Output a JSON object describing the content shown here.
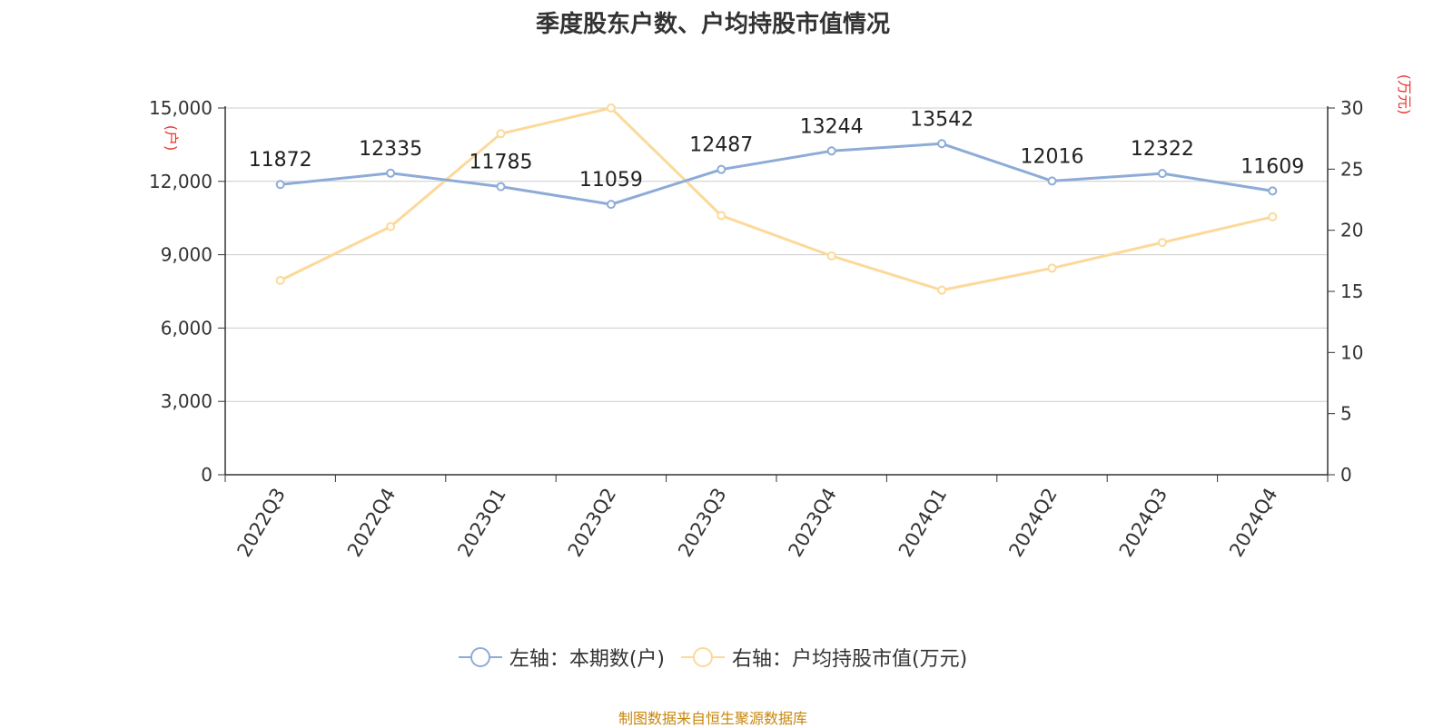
{
  "title": "季度股东户数、户均持股市值情况",
  "source": "制图数据来自恒生聚源数据库",
  "colors": {
    "left_series": "#8eabd8",
    "right_series": "#fcd99a",
    "axis_unit": "#e8332a",
    "source": "#c8860a"
  },
  "chart_data": {
    "type": "line",
    "title": "季度股东户数、户均持股市值情况",
    "categories": [
      "2022Q3",
      "2022Q4",
      "2023Q1",
      "2023Q2",
      "2023Q3",
      "2023Q4",
      "2024Q1",
      "2024Q2",
      "2024Q3",
      "2024Q4"
    ],
    "left_axis": {
      "unit": "(户)",
      "ylim": [
        0,
        15000
      ],
      "ticks": [
        "0",
        "3,000",
        "6,000",
        "9,000",
        "12,000",
        "15,000"
      ]
    },
    "right_axis": {
      "unit": "(万元)",
      "ylim": [
        0,
        30
      ],
      "ticks": [
        "0",
        "5",
        "10",
        "15",
        "20",
        "25",
        "30"
      ]
    },
    "series": [
      {
        "name": "左轴：本期数(户)",
        "axis": "left",
        "values": [
          11872,
          12335,
          11785,
          11059,
          12487,
          13244,
          13542,
          12016,
          12322,
          11609
        ],
        "labels": [
          "11872",
          "12335",
          "11785",
          "11059",
          "12487",
          "13244",
          "13542",
          "12016",
          "12322",
          "11609"
        ]
      },
      {
        "name": "右轴：户均持股市值(万元)",
        "axis": "right",
        "values": [
          15.9,
          20.3,
          27.9,
          30.0,
          21.2,
          17.9,
          15.1,
          16.9,
          19.0,
          21.1
        ]
      }
    ],
    "grid": true,
    "legend_position": "bottom"
  }
}
